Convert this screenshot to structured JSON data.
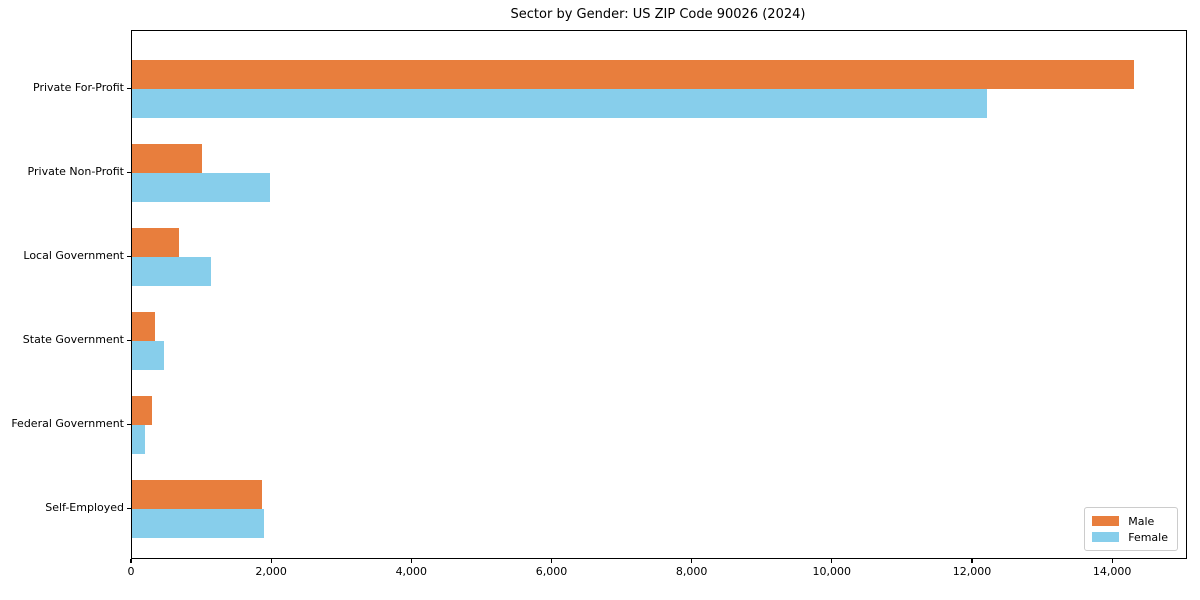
{
  "chart_data": {
    "type": "bar",
    "orientation": "horizontal",
    "title": "Sector by Gender: US ZIP Code 90026 (2024)",
    "xlabel": "",
    "ylabel": "",
    "categories": [
      "Private For-Profit",
      "Private Non-Profit",
      "Local Government",
      "State Government",
      "Federal Government",
      "Self-Employed"
    ],
    "series": [
      {
        "name": "Male",
        "color": "#e87e3d",
        "values": [
          14300,
          1000,
          670,
          330,
          280,
          1850
        ]
      },
      {
        "name": "Female",
        "color": "#87ceeb",
        "values": [
          12200,
          1970,
          1130,
          460,
          190,
          1880
        ]
      }
    ],
    "xlim": [
      0,
      15040
    ],
    "xticks": [
      {
        "value": 0,
        "label": "0"
      },
      {
        "value": 2000,
        "label": "2,000"
      },
      {
        "value": 4000,
        "label": "4,000"
      },
      {
        "value": 6000,
        "label": "6,000"
      },
      {
        "value": 8000,
        "label": "8,000"
      },
      {
        "value": 10000,
        "label": "10,000"
      },
      {
        "value": 12000,
        "label": "12,000"
      },
      {
        "value": 14000,
        "label": "14,000"
      }
    ],
    "grid": false,
    "legend": {
      "position": "lower right"
    },
    "spine_color": "#000000",
    "background": "#ffffff"
  }
}
